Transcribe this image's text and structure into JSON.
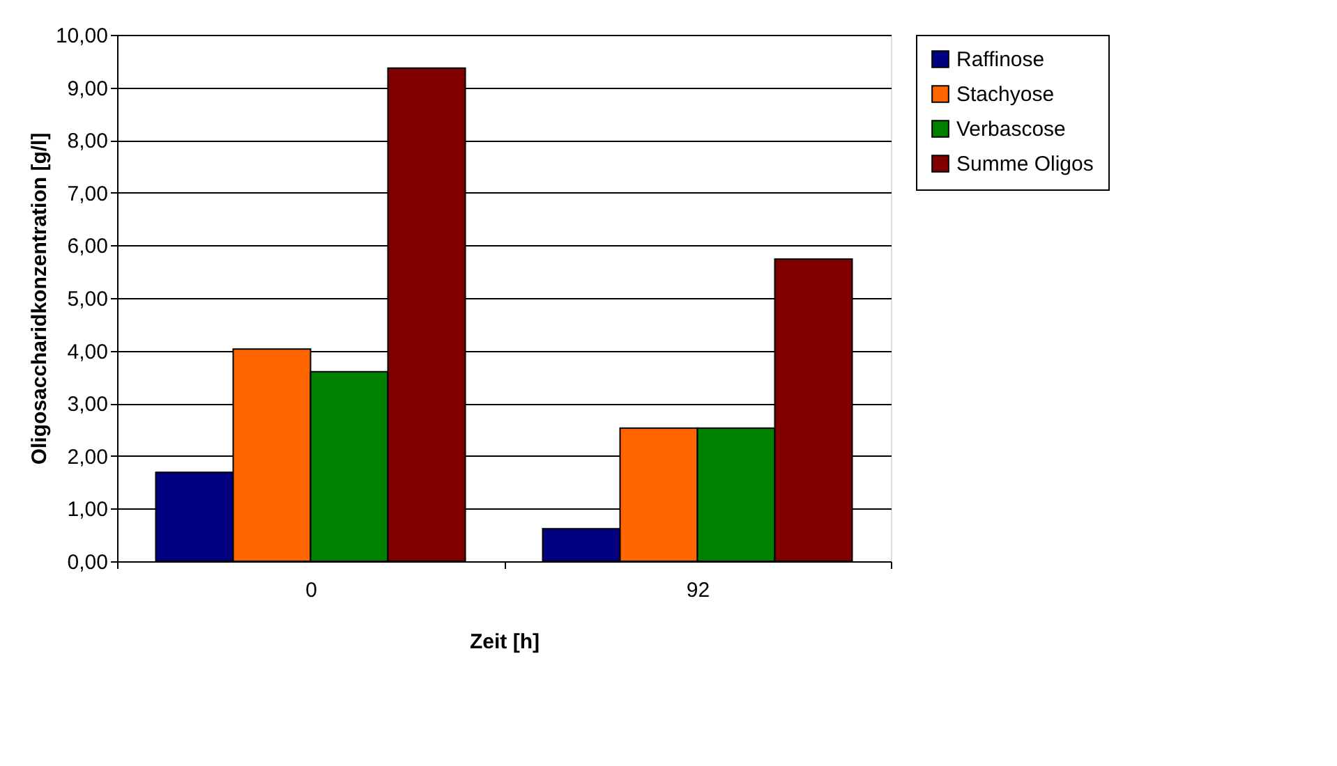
{
  "chart_data": {
    "type": "bar",
    "xlabel": "Zeit [h]",
    "ylabel": "Oligosaccharidkonzentration [g/l]",
    "categories": [
      "0",
      "92"
    ],
    "series": [
      {
        "name": "Raffinose",
        "color": "#000080",
        "values": [
          1.69,
          0.62
        ]
      },
      {
        "name": "Stachyose",
        "color": "#ff6600",
        "values": [
          4.03,
          2.53
        ]
      },
      {
        "name": "Verbascose",
        "color": "#008000",
        "values": [
          3.6,
          2.53
        ]
      },
      {
        "name": "Summe Oligos",
        "color": "#800000",
        "values": [
          9.37,
          5.74
        ]
      }
    ],
    "ylim": [
      0,
      10
    ],
    "yticks": [
      {
        "value": 0,
        "label": "0,00"
      },
      {
        "value": 1,
        "label": "1,00"
      },
      {
        "value": 2,
        "label": "2,00"
      },
      {
        "value": 3,
        "label": "3,00"
      },
      {
        "value": 4,
        "label": "4,00"
      },
      {
        "value": 5,
        "label": "5,00"
      },
      {
        "value": 6,
        "label": "6,00"
      },
      {
        "value": 7,
        "label": "7,00"
      },
      {
        "value": 8,
        "label": "8,00"
      },
      {
        "value": 9,
        "label": "9,00"
      },
      {
        "value": 10,
        "label": "10,00"
      }
    ],
    "grid": "y",
    "legend": "right"
  }
}
